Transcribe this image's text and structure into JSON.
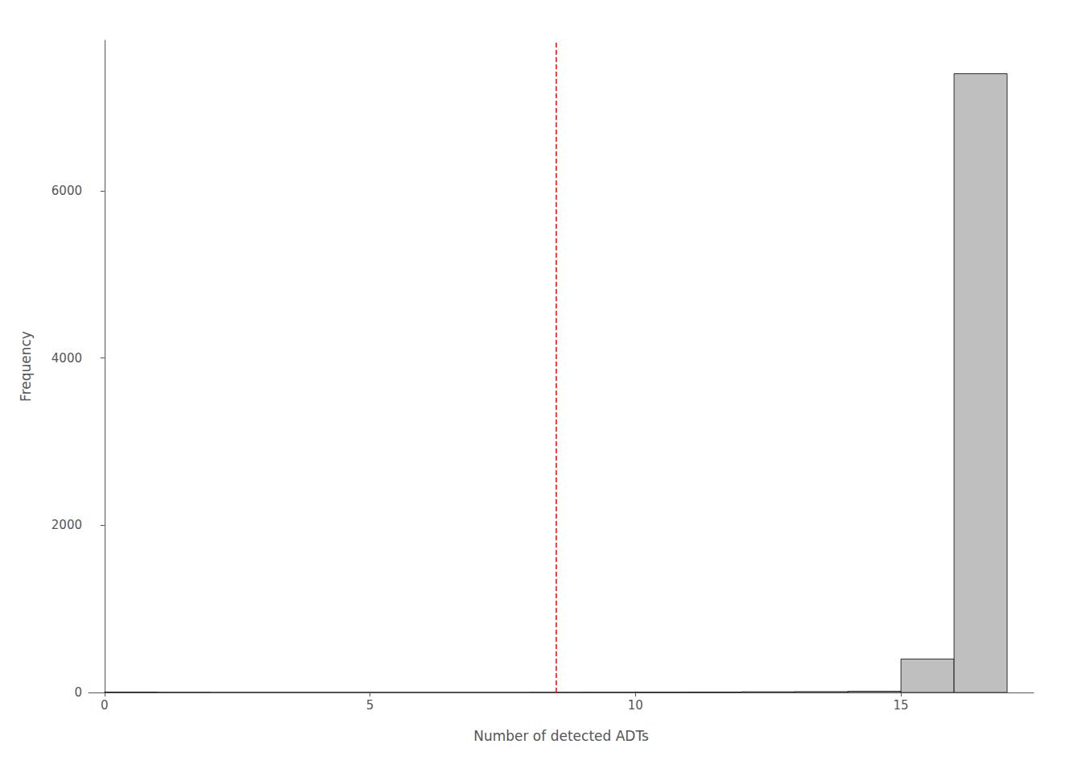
{
  "chart_data": {
    "type": "histogram",
    "xlabel": "Number of detected ADTs",
    "ylabel": "Frequency",
    "bins": [
      0,
      1,
      2,
      3,
      4,
      5,
      6,
      7,
      8,
      9,
      10,
      11,
      12,
      13,
      14,
      15,
      16,
      17
    ],
    "values": [
      5,
      2,
      1,
      1,
      1,
      1,
      1,
      1,
      2,
      3,
      4,
      5,
      8,
      10,
      15,
      400,
      7400
    ],
    "color": "#bfbfbf",
    "xlim": [
      -0.3,
      17.5
    ],
    "ylim": [
      0,
      7800
    ],
    "xticks": [
      0,
      5,
      10,
      15
    ],
    "yticks": [
      0,
      2000,
      4000,
      6000
    ],
    "grid": false,
    "vlines": [
      {
        "x": 8.5,
        "color": "red",
        "line_style": "dashed"
      }
    ]
  }
}
